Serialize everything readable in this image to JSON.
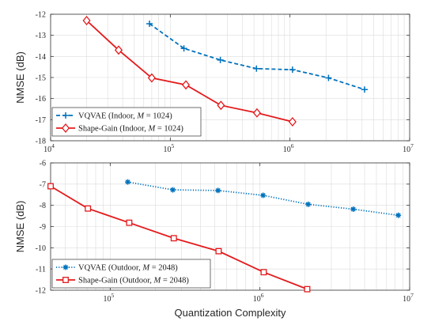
{
  "chart_data": [
    {
      "type": "line",
      "ylabel": "NMSE (dB)",
      "xlabel": "",
      "xscale": "log",
      "xlim": [
        10000,
        10000000
      ],
      "ylim": [
        -18,
        -12
      ],
      "xticks": [
        {
          "value": 10000,
          "base": "10",
          "exp": "4"
        },
        {
          "value": 100000,
          "base": "10",
          "exp": "5"
        },
        {
          "value": 1000000,
          "base": "10",
          "exp": "6"
        },
        {
          "value": 10000000,
          "base": "10",
          "exp": "7"
        }
      ],
      "yticks": [
        -12,
        -13,
        -14,
        -15,
        -16,
        -17,
        -18
      ],
      "ytick_labels": [
        "-12",
        "-13",
        "-14",
        "-15",
        "-16",
        "-17",
        "-18"
      ],
      "grid": true,
      "legend_position": "bottom-left",
      "series": [
        {
          "name": "VQVAE (Indoor, M = 1024)",
          "legend_prefix": "VQVAE (Indoor, ",
          "legend_var": "M",
          "legend_suffix": " = 1024)",
          "color": "#0072BD",
          "line": "dashed",
          "marker": "plus",
          "points": [
            [
              67000,
              -12.45
            ],
            [
              130000,
              -13.62
            ],
            [
              262000,
              -14.17
            ],
            [
              525000,
              -14.58
            ],
            [
              1050000,
              -14.63
            ],
            [
              2100000,
              -15.02
            ],
            [
              4200000,
              -15.57
            ]
          ]
        },
        {
          "name": "Shape-Gain (Indoor, M = 1024)",
          "legend_prefix": "Shape-Gain (Indoor, ",
          "legend_var": "M",
          "legend_suffix": " = 1024)",
          "color": "#E41A1C",
          "line": "solid",
          "marker": "diamond",
          "points": [
            [
              20000,
              -12.3
            ],
            [
              37000,
              -13.7
            ],
            [
              70000,
              -15.02
            ],
            [
              135000,
              -15.35
            ],
            [
              265000,
              -16.32
            ],
            [
              530000,
              -16.68
            ],
            [
              1050000,
              -17.1
            ]
          ]
        }
      ]
    },
    {
      "type": "line",
      "ylabel": "NMSE (dB)",
      "xlabel": "Quantization Complexity",
      "xscale": "log",
      "xlim": [
        40000,
        10000000
      ],
      "ylim": [
        -12,
        -6
      ],
      "xticks": [
        {
          "value": 100000,
          "base": "10",
          "exp": "5"
        },
        {
          "value": 1000000,
          "base": "10",
          "exp": "6"
        },
        {
          "value": 10000000,
          "base": "10",
          "exp": "7"
        }
      ],
      "yticks": [
        -6,
        -7,
        -8,
        -9,
        -10,
        -11,
        -12
      ],
      "ytick_labels": [
        "-6",
        "-7",
        "-8",
        "-9",
        "-10",
        "-11",
        "-12"
      ],
      "grid": true,
      "legend_position": "bottom-left",
      "series": [
        {
          "name": "VQVAE (Outdoor, M = 2048)",
          "legend_prefix": "VQVAE (Outdoor, ",
          "legend_var": "M",
          "legend_suffix": " = 2048)",
          "color": "#0072BD",
          "line": "dotted",
          "marker": "asterisk",
          "points": [
            [
              131000,
              -6.9
            ],
            [
              262000,
              -7.27
            ],
            [
              525000,
              -7.3
            ],
            [
              1050000,
              -7.53
            ],
            [
              2100000,
              -7.95
            ],
            [
              4200000,
              -8.18
            ],
            [
              8400000,
              -8.47
            ]
          ]
        },
        {
          "name": "Shape-Gain (Outdoor, M = 2048)",
          "legend_prefix": "Shape-Gain (Outdoor, ",
          "legend_var": "M",
          "legend_suffix": " = 2048)",
          "color": "#E41A1C",
          "line": "solid",
          "marker": "square",
          "points": [
            [
              40000,
              -7.1
            ],
            [
              71000,
              -8.15
            ],
            [
              134000,
              -8.82
            ],
            [
              266000,
              -9.55
            ],
            [
              530000,
              -10.16
            ],
            [
              1060000,
              -11.15
            ],
            [
              2070000,
              -11.95
            ]
          ]
        }
      ]
    }
  ]
}
